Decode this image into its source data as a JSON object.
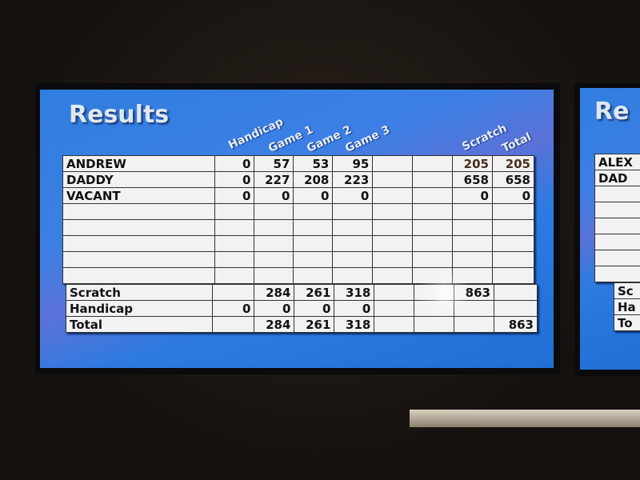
{
  "main_screen": {
    "title": "Results",
    "column_headers": [
      "Handicap",
      "Game 1",
      "Game 2",
      "Game 3",
      "Scratch",
      "Total"
    ],
    "players": [
      {
        "name": "ANDREW",
        "handicap": "0",
        "game1": "57",
        "game2": "53",
        "game3": "95",
        "scratch": "205",
        "total": "205"
      },
      {
        "name": "DADDY",
        "handicap": "0",
        "game1": "227",
        "game2": "208",
        "game3": "223",
        "scratch": "658",
        "total": "658"
      },
      {
        "name": "VACANT",
        "handicap": "0",
        "game1": "0",
        "game2": "0",
        "game3": "0",
        "scratch": "0",
        "total": "0"
      }
    ],
    "summary": [
      {
        "label": "Scratch",
        "handicap": "",
        "game1": "284",
        "game2": "261",
        "game3": "318",
        "scratch": "863",
        "total": ""
      },
      {
        "label": "Handicap",
        "handicap": "0",
        "game1": "0",
        "game2": "0",
        "game3": "0",
        "scratch": "",
        "total": ""
      },
      {
        "label": "Total",
        "handicap": "",
        "game1": "284",
        "game2": "261",
        "game3": "318",
        "scratch": "",
        "total": "863"
      }
    ]
  },
  "side_screen": {
    "title": "Re",
    "players": [
      "ALEX",
      "DAD"
    ],
    "summary": [
      "Sc",
      "Ha",
      "To"
    ]
  },
  "colors": {
    "screen_blue": "#2f7ee0",
    "table_bg": "#f2f2f2"
  }
}
